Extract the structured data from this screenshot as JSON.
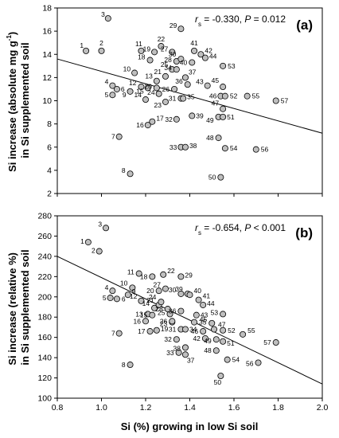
{
  "chart_data": [
    {
      "type": "scatter",
      "panel_label": "(a)",
      "stat_text": "r_s = -0.330, P = 0.012",
      "ylabel_parts": [
        "Si increase (absolute mg g",
        "-1",
        ")",
        "in Si supplemented soil"
      ],
      "xlim": [
        0.8,
        2.0
      ],
      "ylim": [
        2,
        18
      ],
      "y_ticks": [
        2,
        4,
        6,
        8,
        10,
        12,
        14,
        16,
        18
      ],
      "regression": {
        "x": [
          0.8,
          2.0
        ],
        "y": [
          13.6,
          7.2
        ]
      },
      "points": [
        {
          "id": "1",
          "x": 0.93,
          "y": 14.3
        },
        {
          "id": "2",
          "x": 1.0,
          "y": 14.3
        },
        {
          "id": "3",
          "x": 1.03,
          "y": 17.1
        },
        {
          "id": "4",
          "x": 1.05,
          "y": 11.3
        },
        {
          "id": "5",
          "x": 1.05,
          "y": 10.5
        },
        {
          "id": "6",
          "x": 1.07,
          "y": 11.0
        },
        {
          "id": "7",
          "x": 1.08,
          "y": 6.9
        },
        {
          "id": "8",
          "x": 1.13,
          "y": 3.7
        },
        {
          "id": "9",
          "x": 1.13,
          "y": 10.8
        },
        {
          "id": "10",
          "x": 1.15,
          "y": 12.4
        },
        {
          "id": "11",
          "x": 1.18,
          "y": 14.3
        },
        {
          "id": "12",
          "x": 1.18,
          "y": 11.2
        },
        {
          "id": "13",
          "x": 1.25,
          "y": 11.7
        },
        {
          "id": "14",
          "x": 1.2,
          "y": 10.1
        },
        {
          "id": "15",
          "x": 1.21,
          "y": 11.1
        },
        {
          "id": "16",
          "x": 1.21,
          "y": 7.9
        },
        {
          "id": "17",
          "x": 1.23,
          "y": 8.2
        },
        {
          "id": "18",
          "x": 1.22,
          "y": 13.5
        },
        {
          "id": "19",
          "x": 1.24,
          "y": 14.2
        },
        {
          "id": "20",
          "x": 1.25,
          "y": 11.1
        },
        {
          "id": "21",
          "x": 1.29,
          "y": 12.1
        },
        {
          "id": "22",
          "x": 1.27,
          "y": 14.7
        },
        {
          "id": "23",
          "x": 1.29,
          "y": 9.9
        },
        {
          "id": "24",
          "x": 1.26,
          "y": 10.6
        },
        {
          "id": "25",
          "x": 1.32,
          "y": 12.7
        },
        {
          "id": "26",
          "x": 1.33,
          "y": 11.0
        },
        {
          "id": "27",
          "x": 1.32,
          "y": 14.2
        },
        {
          "id": "28",
          "x": 1.34,
          "y": 13.4
        },
        {
          "id": "29",
          "x": 1.36,
          "y": 16.2
        },
        {
          "id": "30",
          "x": 1.36,
          "y": 13.6
        },
        {
          "id": "31",
          "x": 1.36,
          "y": 10.2
        },
        {
          "id": "32",
          "x": 1.34,
          "y": 8.4
        },
        {
          "id": "33",
          "x": 1.36,
          "y": 6.0
        },
        {
          "id": "34",
          "x": 1.34,
          "y": 12.7
        },
        {
          "id": "35",
          "x": 1.37,
          "y": 10.2
        },
        {
          "id": "36",
          "x": 1.39,
          "y": 11.4
        },
        {
          "id": "37",
          "x": 1.38,
          "y": 12.0
        },
        {
          "id": "38",
          "x": 1.38,
          "y": 6.0
        },
        {
          "id": "39",
          "x": 1.41,
          "y": 8.7
        },
        {
          "id": "40",
          "x": 1.41,
          "y": 13.3
        },
        {
          "id": "41",
          "x": 1.42,
          "y": 14.3
        },
        {
          "id": "42",
          "x": 1.45,
          "y": 14.0
        },
        {
          "id": "43",
          "x": 1.48,
          "y": 11.3
        },
        {
          "id": "44",
          "x": 1.47,
          "y": 13.7
        },
        {
          "id": "45",
          "x": 1.55,
          "y": 11.2
        },
        {
          "id": "46",
          "x": 1.54,
          "y": 10.4
        },
        {
          "id": "47",
          "x": 1.55,
          "y": 9.3
        },
        {
          "id": "48",
          "x": 1.53,
          "y": 6.8
        },
        {
          "id": "49",
          "x": 1.53,
          "y": 8.6
        },
        {
          "id": "50",
          "x": 1.54,
          "y": 3.4
        },
        {
          "id": "51",
          "x": 1.55,
          "y": 8.6
        },
        {
          "id": "52",
          "x": 1.56,
          "y": 10.4
        },
        {
          "id": "53",
          "x": 1.55,
          "y": 13.0
        },
        {
          "id": "54",
          "x": 1.56,
          "y": 5.9
        },
        {
          "id": "55",
          "x": 1.66,
          "y": 10.4
        },
        {
          "id": "56",
          "x": 1.7,
          "y": 5.8
        },
        {
          "id": "57",
          "x": 1.79,
          "y": 10.0
        }
      ]
    },
    {
      "type": "scatter",
      "panel_label": "(b)",
      "stat_text": "r_s = -0.654, P < 0.001",
      "ylabel_parts": [
        "Si increase (relative %)",
        "in Si supplemented soil"
      ],
      "xlabel": "Si (%) growing in low Si soil",
      "xlim": [
        0.8,
        2.0
      ],
      "ylim": [
        100,
        280
      ],
      "x_ticks": [
        0.8,
        1.0,
        1.2,
        1.4,
        1.6,
        1.8,
        2.0
      ],
      "y_ticks": [
        100,
        120,
        140,
        160,
        180,
        200,
        220,
        240,
        260,
        280
      ],
      "regression": {
        "x": [
          0.8,
          2.0
        ],
        "y": [
          240,
          114
        ]
      },
      "points": [
        {
          "id": "1",
          "x": 0.94,
          "y": 254
        },
        {
          "id": "2",
          "x": 0.99,
          "y": 245
        },
        {
          "id": "3",
          "x": 1.02,
          "y": 268
        },
        {
          "id": "4",
          "x": 1.05,
          "y": 206
        },
        {
          "id": "5",
          "x": 1.04,
          "y": 199
        },
        {
          "id": "6",
          "x": 1.07,
          "y": 198
        },
        {
          "id": "7",
          "x": 1.08,
          "y": 164
        },
        {
          "id": "8",
          "x": 1.13,
          "y": 133
        },
        {
          "id": "9",
          "x": 1.12,
          "y": 202
        },
        {
          "id": "10",
          "x": 1.14,
          "y": 209
        },
        {
          "id": "11",
          "x": 1.17,
          "y": 223
        },
        {
          "id": "12",
          "x": 1.18,
          "y": 196
        },
        {
          "id": "13",
          "x": 1.21,
          "y": 183
        },
        {
          "id": "14",
          "x": 1.24,
          "y": 189
        },
        {
          "id": "15",
          "x": 1.23,
          "y": 182
        },
        {
          "id": "16",
          "x": 1.2,
          "y": 176
        },
        {
          "id": "17",
          "x": 1.22,
          "y": 166
        },
        {
          "id": "18",
          "x": 1.23,
          "y": 220
        },
        {
          "id": "19",
          "x": 1.25,
          "y": 167
        },
        {
          "id": "20",
          "x": 1.26,
          "y": 206
        },
        {
          "id": "21",
          "x": 1.26,
          "y": 192
        },
        {
          "id": "22",
          "x": 1.28,
          "y": 222
        },
        {
          "id": "23",
          "x": 1.32,
          "y": 175
        },
        {
          "id": "24",
          "x": 1.27,
          "y": 195
        },
        {
          "id": "25",
          "x": 1.31,
          "y": 183
        },
        {
          "id": "26",
          "x": 1.32,
          "y": 176
        },
        {
          "id": "27",
          "x": 1.29,
          "y": 208
        },
        {
          "id": "28",
          "x": 1.3,
          "y": 188
        },
        {
          "id": "29",
          "x": 1.36,
          "y": 220
        },
        {
          "id": "30",
          "x": 1.36,
          "y": 203
        },
        {
          "id": "31",
          "x": 1.36,
          "y": 168
        },
        {
          "id": "32",
          "x": 1.34,
          "y": 158
        },
        {
          "id": "33",
          "x": 1.35,
          "y": 145
        },
        {
          "id": "34",
          "x": 1.38,
          "y": 168
        },
        {
          "id": "35",
          "x": 1.42,
          "y": 175
        },
        {
          "id": "36",
          "x": 1.36,
          "y": 186
        },
        {
          "id": "37",
          "x": 1.38,
          "y": 143
        },
        {
          "id": "38",
          "x": 1.38,
          "y": 150
        },
        {
          "id": "39",
          "x": 1.39,
          "y": 203
        },
        {
          "id": "40",
          "x": 1.4,
          "y": 202
        },
        {
          "id": "41",
          "x": 1.44,
          "y": 197
        },
        {
          "id": "42",
          "x": 1.47,
          "y": 159
        },
        {
          "id": "43",
          "x": 1.43,
          "y": 182
        },
        {
          "id": "44",
          "x": 1.46,
          "y": 192
        },
        {
          "id": "45",
          "x": 1.5,
          "y": 174
        },
        {
          "id": "46",
          "x": 1.46,
          "y": 166
        },
        {
          "id": "47",
          "x": 1.51,
          "y": 168
        },
        {
          "id": "48",
          "x": 1.52,
          "y": 147
        },
        {
          "id": "49",
          "x": 1.52,
          "y": 158
        },
        {
          "id": "50",
          "x": 1.54,
          "y": 122
        },
        {
          "id": "51",
          "x": 1.55,
          "y": 156
        },
        {
          "id": "52",
          "x": 1.55,
          "y": 167
        },
        {
          "id": "53",
          "x": 1.55,
          "y": 183
        },
        {
          "id": "54",
          "x": 1.57,
          "y": 138
        },
        {
          "id": "55",
          "x": 1.64,
          "y": 163
        },
        {
          "id": "56",
          "x": 1.71,
          "y": 135
        },
        {
          "id": "57",
          "x": 1.79,
          "y": 155
        }
      ]
    }
  ]
}
